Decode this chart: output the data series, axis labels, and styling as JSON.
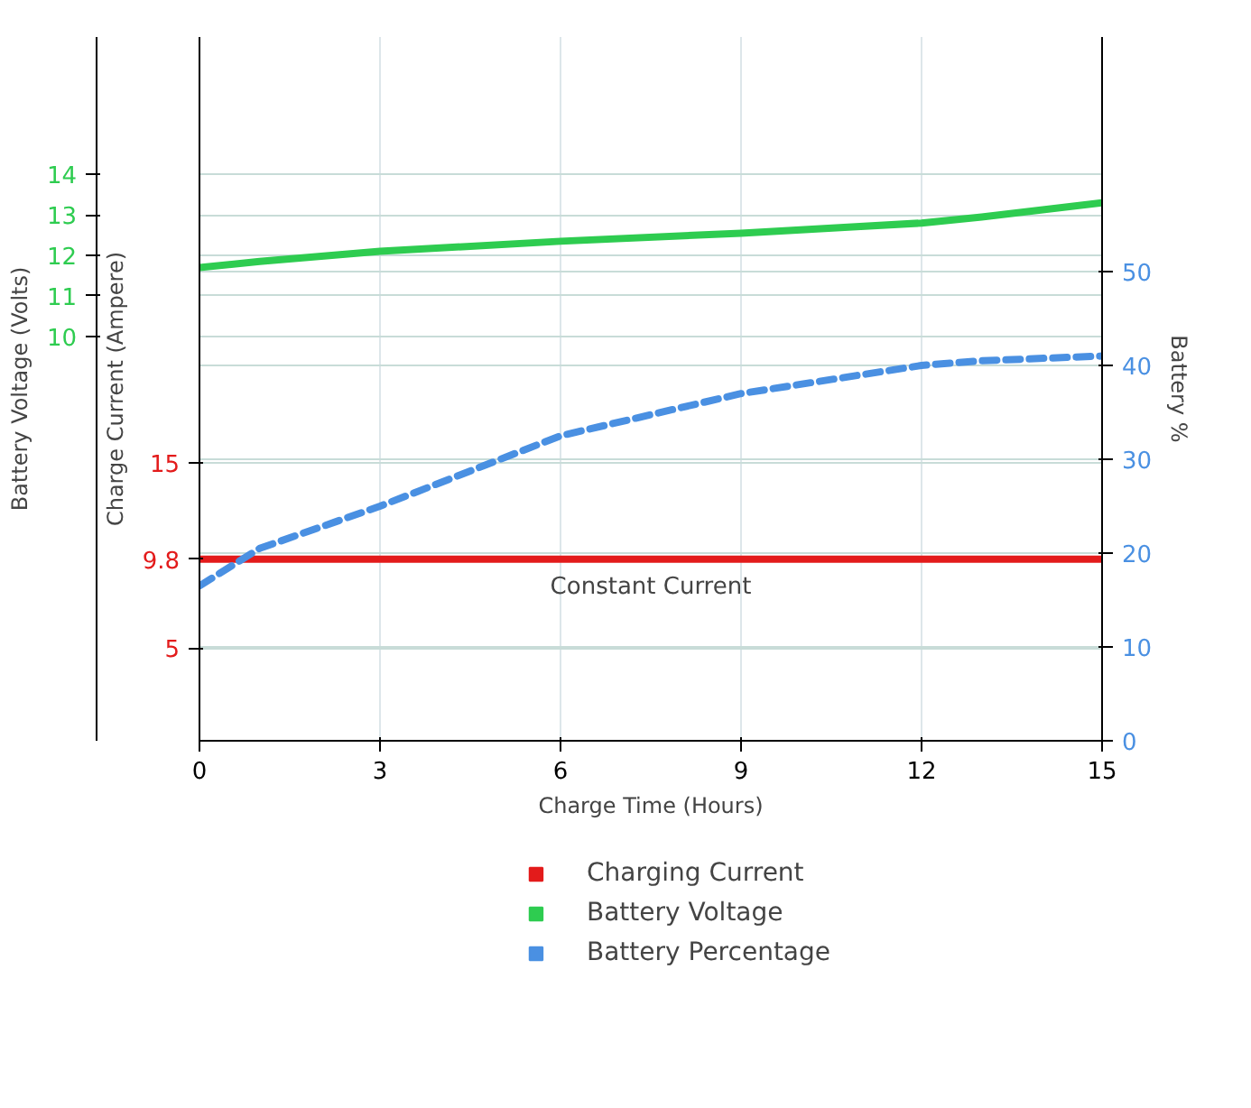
{
  "chart_data": {
    "type": "line",
    "xlabel": "Charge Time (Hours)",
    "ylabel": "Charge Current (Ampere)",
    "y2label": "Battery Voltage (Volts)",
    "y3label": "Battery %",
    "x": [
      0,
      1,
      3,
      6,
      9,
      12,
      13,
      15
    ],
    "series": [
      {
        "name": "Charging Current",
        "color": "#e31b1b",
        "axis": "y",
        "line_style": "solid",
        "values": [
          9.8,
          9.8,
          9.8,
          9.8,
          9.8,
          9.8,
          9.8,
          9.8
        ]
      },
      {
        "name": "Battery Voltage",
        "color": "#2ecc50",
        "axis": "y2",
        "line_style": "solid",
        "values": [
          11.7,
          11.85,
          12.1,
          12.35,
          12.55,
          12.8,
          12.95,
          13.3
        ]
      },
      {
        "name": "Battery Percentage",
        "color": "#4a90e2",
        "axis": "y3",
        "line_style": "dashed",
        "values": [
          16.5,
          20.5,
          25,
          32.5,
          37,
          40,
          40.5,
          41
        ]
      }
    ],
    "xlim": [
      0,
      15
    ],
    "xticks": [
      0,
      3,
      6,
      9,
      12,
      15
    ],
    "ylim": [
      0,
      38
    ],
    "yticks": [
      5,
      9.8,
      15
    ],
    "y2lim": [
      0,
      17.4
    ],
    "y2ticks": [
      10,
      11,
      12,
      13,
      14
    ],
    "y3lim": [
      0,
      75
    ],
    "y3ticks": [
      0,
      10,
      20,
      30,
      40,
      50
    ],
    "annotations": [
      {
        "text": "Constant Current",
        "x": 7.5,
        "y": 9.8
      }
    ],
    "grid": true,
    "legend": "bottom"
  }
}
